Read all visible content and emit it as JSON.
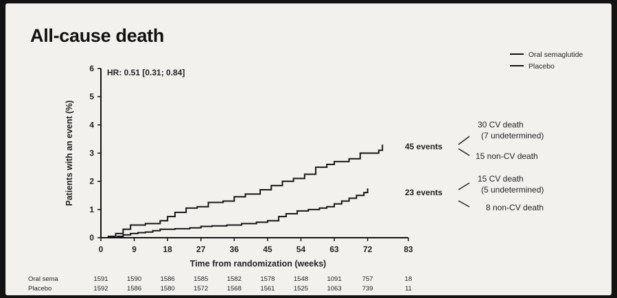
{
  "title": "All-cause death",
  "chart_data": {
    "type": "line",
    "title": "All-cause death",
    "hr_label": "HR: 0.51 [0.31; 0.84]",
    "xlabel": "Time from randomization (weeks)",
    "ylabel": "Patients with an event (%)",
    "xlim": [
      0,
      83
    ],
    "ylim": [
      0,
      6
    ],
    "x_ticks": [
      "0",
      "9",
      "18",
      "27",
      "36",
      "45",
      "54",
      "63",
      "72",
      "83"
    ],
    "y_ticks": [
      "0",
      "1",
      "2",
      "3",
      "4",
      "5",
      "6"
    ],
    "legend_position": "top-right",
    "series": [
      {
        "name": "Oral semaglutide",
        "events_label": "23 events",
        "points": [
          [
            0,
            0
          ],
          [
            3,
            0
          ],
          [
            4.5,
            0.05
          ],
          [
            6,
            0.1
          ],
          [
            8,
            0.15
          ],
          [
            10,
            0.18
          ],
          [
            12,
            0.2
          ],
          [
            14,
            0.25
          ],
          [
            16,
            0.3
          ],
          [
            20,
            0.32
          ],
          [
            24,
            0.35
          ],
          [
            27,
            0.4
          ],
          [
            30,
            0.42
          ],
          [
            34,
            0.45
          ],
          [
            38,
            0.5
          ],
          [
            42,
            0.55
          ],
          [
            45,
            0.6
          ],
          [
            48,
            0.75
          ],
          [
            50,
            0.85
          ],
          [
            53,
            0.95
          ],
          [
            56,
            1.0
          ],
          [
            59,
            1.05
          ],
          [
            61,
            1.1
          ],
          [
            63,
            1.2
          ],
          [
            65,
            1.3
          ],
          [
            67,
            1.4
          ],
          [
            69,
            1.5
          ],
          [
            71,
            1.6
          ],
          [
            72,
            1.75
          ]
        ],
        "breakdown": [
          "15 CV death",
          "(5 undetermined)",
          "8 non-CV death"
        ]
      },
      {
        "name": "Placebo",
        "events_label": "45 events",
        "points": [
          [
            0,
            0
          ],
          [
            2,
            0.05
          ],
          [
            4,
            0.15
          ],
          [
            6,
            0.3
          ],
          [
            8,
            0.45
          ],
          [
            12,
            0.5
          ],
          [
            16,
            0.6
          ],
          [
            18,
            0.75
          ],
          [
            20,
            0.9
          ],
          [
            23,
            1.05
          ],
          [
            26,
            1.1
          ],
          [
            29,
            1.25
          ],
          [
            33,
            1.3
          ],
          [
            36,
            1.45
          ],
          [
            39,
            1.55
          ],
          [
            43,
            1.7
          ],
          [
            46,
            1.85
          ],
          [
            49,
            2.0
          ],
          [
            52,
            2.1
          ],
          [
            55,
            2.25
          ],
          [
            58,
            2.5
          ],
          [
            61,
            2.6
          ],
          [
            63,
            2.7
          ],
          [
            67,
            2.8
          ],
          [
            70,
            3.0
          ],
          [
            75,
            3.1
          ],
          [
            76,
            3.3
          ]
        ],
        "breakdown": [
          "30 CV death",
          "(7 undetermined)",
          "15 non-CV death"
        ]
      }
    ],
    "risk_table": {
      "rows": [
        {
          "label": "Oral sema",
          "values": [
            "1591",
            "1590",
            "1586",
            "1585",
            "1582",
            "1578",
            "1548",
            "1091",
            "757",
            "18"
          ]
        },
        {
          "label": "Placebo",
          "values": [
            "1592",
            "1586",
            "1580",
            "1572",
            "1568",
            "1561",
            "1525",
            "1063",
            "739",
            "11"
          ]
        }
      ]
    }
  }
}
